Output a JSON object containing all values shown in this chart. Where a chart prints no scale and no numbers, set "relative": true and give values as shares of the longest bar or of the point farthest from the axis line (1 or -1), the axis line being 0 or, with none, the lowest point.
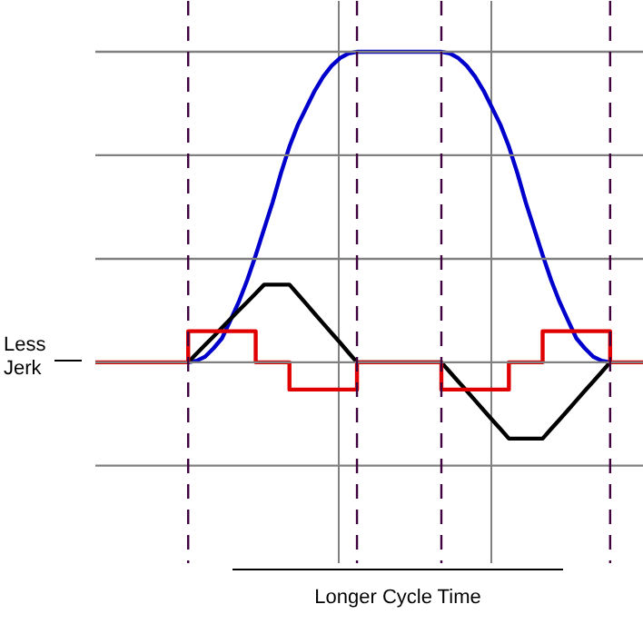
{
  "chart_data": {
    "type": "line",
    "relative": true,
    "grid": "x",
    "ref_lines": [
      {
        "axis": "y",
        "value": 1,
        "color": "#808080"
      },
      {
        "axis": "y",
        "value": 0.667,
        "color": "#808080"
      },
      {
        "axis": "y",
        "value": 0.333,
        "color": "#808080"
      },
      {
        "axis": "y",
        "value": 0,
        "color": "#808080"
      },
      {
        "axis": "y",
        "value": -0.333,
        "color": "#808080"
      }
    ],
    "tick_labels": false,
    "line_style": "solid",
    "categories": [
      null,
      null,
      null,
      null,
      null,
      null,
      null,
      null,
      null,
      null,
      null,
      null,
      null,
      null,
      null,
      null,
      null,
      null,
      null,
      null,
      null,
      null,
      null,
      null,
      null,
      null,
      null,
      null,
      null,
      null,
      null,
      null,
      null,
      null,
      null,
      null,
      null,
      null,
      null,
      null,
      null,
      null,
      null,
      null,
      null,
      null,
      null,
      null,
      null,
      null,
      null,
      null,
      null,
      null,
      null,
      null,
      null,
      null,
      null,
      null,
      null,
      null,
      null,
      null,
      null,
      null
    ],
    "series": [
      {
        "color": "#0000cc",
        "values": [
          null,
          null,
          null,
          null,
          null,
          null,
          null,
          null,
          null,
          null,
          null,
          0,
          0.005,
          0.018,
          0.045,
          0.077,
          0.135,
          0.195,
          0.265,
          0.345,
          0.43,
          0.515,
          0.61,
          0.695,
          0.765,
          0.82,
          0.875,
          0.92,
          0.955,
          0.98,
          0.995,
          1,
          1,
          1,
          1,
          1,
          1,
          1,
          1,
          1,
          1,
          1,
          0.995,
          0.98,
          0.955,
          0.92,
          0.875,
          0.82,
          0.765,
          0.695,
          0.61,
          0.515,
          0.43,
          0.345,
          0.265,
          0.195,
          0.135,
          0.077,
          0.045,
          0.018,
          0.005,
          0,
          null,
          null,
          null,
          null
        ]
      },
      {
        "color": "#000000",
        "values": [
          null,
          null,
          null,
          null,
          null,
          null,
          null,
          null,
          null,
          null,
          null,
          0,
          0.028,
          0.056,
          0.083,
          0.111,
          0.139,
          0.167,
          0.194,
          0.222,
          0.25,
          0.25,
          0.25,
          0.25,
          0.219,
          0.188,
          0.156,
          0.125,
          0.094,
          0.063,
          0.031,
          0,
          0,
          0,
          0,
          0,
          0,
          0,
          0,
          0,
          0,
          0,
          -0.031,
          -0.062,
          -0.092,
          -0.123,
          -0.154,
          -0.185,
          -0.215,
          -0.246,
          -0.246,
          -0.246,
          -0.246,
          -0.246,
          -0.215,
          -0.185,
          -0.154,
          -0.123,
          -0.092,
          -0.062,
          -0.031,
          0,
          null,
          null,
          null,
          null
        ]
      },
      {
        "type": "step",
        "color": "#e00000",
        "values": [
          0,
          0,
          0,
          0,
          0,
          0,
          0,
          0,
          0,
          0,
          0,
          0.1,
          0.1,
          0.1,
          0.1,
          0.1,
          0.1,
          0.1,
          0.1,
          0,
          0,
          0,
          0,
          -0.088,
          -0.088,
          -0.088,
          -0.088,
          -0.088,
          -0.088,
          -0.088,
          -0.088,
          0,
          0,
          0,
          0,
          0,
          0,
          0,
          0,
          0,
          0,
          -0.088,
          -0.088,
          -0.088,
          -0.088,
          -0.088,
          -0.088,
          -0.088,
          -0.088,
          0,
          0,
          0,
          0,
          0.1,
          0.1,
          0.1,
          0.1,
          0.1,
          0.1,
          0.1,
          0.1,
          0,
          0,
          0,
          0,
          0
        ]
      }
    ],
    "annotations": [
      "Less Jerk",
      "Longer Cycle Time"
    ]
  }
}
